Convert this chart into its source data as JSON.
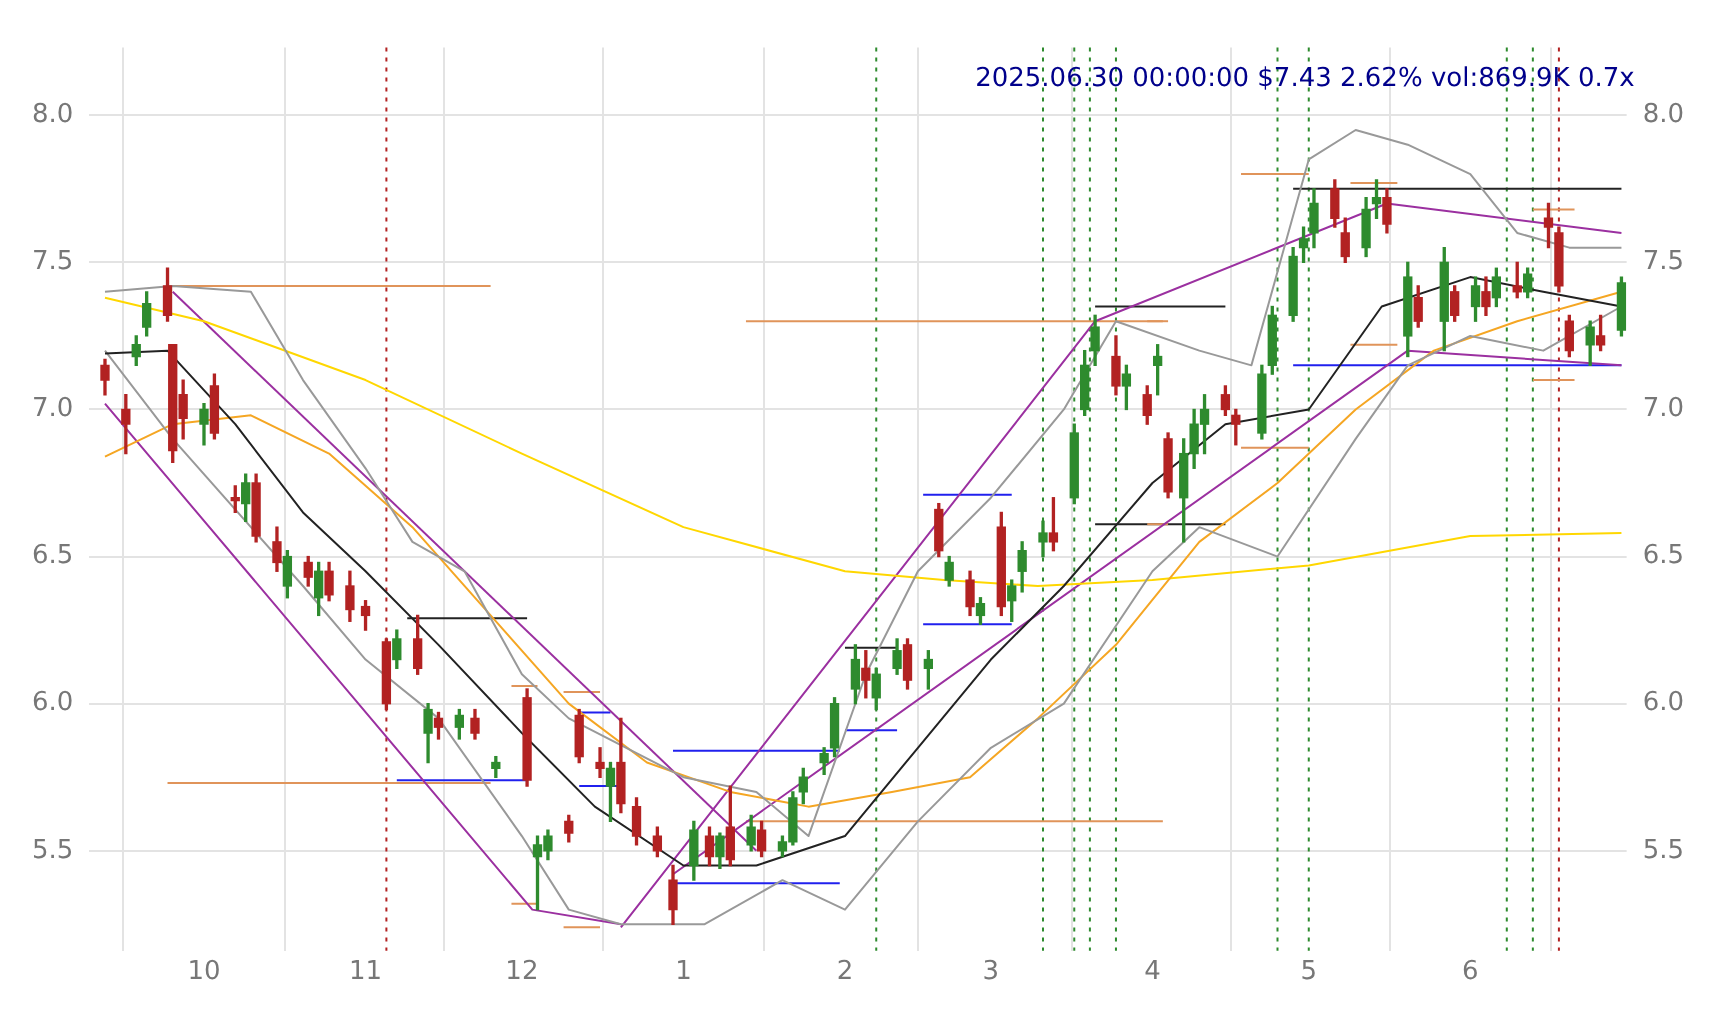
{
  "chart_data": {
    "type": "candlestick",
    "title": "2025.06.30 00:00:00 $7.43 2.62% vol:869.9K 0.7x",
    "xlim": [
      "2024-09-09",
      "2025-07-01"
    ],
    "xticks": [
      {
        "value": "2024-10-01",
        "label": "10"
      },
      {
        "value": "2024-11-01",
        "label": "11"
      },
      {
        "value": "2024-12-01",
        "label": "12"
      },
      {
        "value": "2025-01-01",
        "label": "1"
      },
      {
        "value": "2025-02-01",
        "label": "2"
      },
      {
        "value": "2025-03-01",
        "label": "3"
      },
      {
        "value": "2025-04-01",
        "label": "4"
      },
      {
        "value": "2025-05-01",
        "label": "5"
      },
      {
        "value": "2025-06-01",
        "label": "6"
      }
    ],
    "ylim": [
      5.16,
      8.23
    ],
    "yticks": [
      5.5,
      {
        "value": 6,
        "label": "6.0"
      },
      6.5,
      {
        "value": 7,
        "label": "7.0"
      },
      7.5,
      {
        "value": 8,
        "label": "8.0"
      }
    ],
    "y2lim": [
      5.16,
      8.23
    ],
    "y2ticks": [
      5.5,
      {
        "value": 6,
        "label": "6.0"
      },
      6.5,
      {
        "value": 7,
        "label": "7.0"
      },
      7.5,
      {
        "value": 8,
        "label": "8.0"
      }
    ],
    "grid": true,
    "legend": false,
    "series": [
      {
        "color": "#2e8b2e",
        "x": [
          "2024-09-18",
          "2024-09-20",
          "2024-10-01",
          "2024-10-09",
          "2024-10-17",
          "2024-10-23",
          "2024-11-07",
          "2024-11-13",
          "2024-11-19",
          "2024-11-26",
          "2024-12-04",
          "2024-12-06",
          "2024-12-18",
          "2025-01-03",
          "2025-01-08",
          "2025-01-14",
          "2025-01-20",
          "2025-01-22",
          "2025-01-24",
          "2025-01-28",
          "2025-01-30",
          "2025-02-03",
          "2025-02-07",
          "2025-02-11",
          "2025-02-17",
          "2025-02-21",
          "2025-02-27",
          "2025-03-05",
          "2025-03-07",
          "2025-03-11",
          "2025-03-17",
          "2025-03-19",
          "2025-03-21",
          "2025-03-27",
          "2025-04-02",
          "2025-04-07",
          "2025-04-09",
          "2025-04-11",
          "2025-04-22",
          "2025-04-24",
          "2025-04-28",
          "2025-04-30",
          "2025-05-02",
          "2025-05-12",
          "2025-05-14",
          "2025-05-20",
          "2025-05-27",
          "2025-06-02",
          "2025-06-06",
          "2025-06-12",
          "2025-06-24",
          "2025-06-30"
        ],
        "ohlc": [
          [
            7.18,
            7.25,
            7.15,
            7.22
          ],
          [
            7.28,
            7.4,
            7.25,
            7.36
          ],
          [
            6.95,
            7.02,
            6.88,
            7.0
          ],
          [
            6.68,
            6.78,
            6.62,
            6.75
          ],
          [
            6.4,
            6.52,
            6.36,
            6.5
          ],
          [
            6.36,
            6.48,
            6.3,
            6.45
          ],
          [
            6.15,
            6.25,
            6.12,
            6.22
          ],
          [
            5.9,
            6.0,
            5.8,
            5.98
          ],
          [
            5.92,
            5.98,
            5.88,
            5.96
          ],
          [
            5.78,
            5.82,
            5.75,
            5.8
          ],
          [
            5.48,
            5.55,
            5.3,
            5.52
          ],
          [
            5.5,
            5.57,
            5.47,
            5.55
          ],
          [
            5.72,
            5.8,
            5.6,
            5.78
          ],
          [
            5.45,
            5.6,
            5.4,
            5.57
          ],
          [
            5.48,
            5.56,
            5.44,
            5.55
          ],
          [
            5.52,
            5.62,
            5.5,
            5.58
          ],
          [
            5.5,
            5.55,
            5.48,
            5.53
          ],
          [
            5.53,
            5.7,
            5.52,
            5.68
          ],
          [
            5.7,
            5.78,
            5.66,
            5.75
          ],
          [
            5.8,
            5.85,
            5.76,
            5.83
          ],
          [
            5.85,
            6.02,
            5.82,
            6.0
          ],
          [
            6.05,
            6.2,
            6.0,
            6.15
          ],
          [
            6.02,
            6.12,
            5.98,
            6.1
          ],
          [
            6.12,
            6.22,
            6.1,
            6.18
          ],
          [
            6.12,
            6.18,
            6.05,
            6.15
          ],
          [
            6.42,
            6.5,
            6.4,
            6.48
          ],
          [
            6.3,
            6.36,
            6.27,
            6.34
          ],
          [
            6.35,
            6.42,
            6.28,
            6.4
          ],
          [
            6.45,
            6.55,
            6.38,
            6.52
          ],
          [
            6.55,
            6.62,
            6.5,
            6.58
          ],
          [
            6.7,
            6.95,
            6.68,
            6.92
          ],
          [
            7.0,
            7.2,
            6.98,
            7.15
          ],
          [
            7.2,
            7.32,
            7.15,
            7.28
          ],
          [
            7.08,
            7.15,
            7.0,
            7.12
          ],
          [
            7.15,
            7.22,
            7.05,
            7.18
          ],
          [
            6.7,
            6.9,
            6.55,
            6.85
          ],
          [
            6.85,
            7.0,
            6.8,
            6.95
          ],
          [
            6.95,
            7.05,
            6.85,
            7.0
          ],
          [
            6.92,
            7.15,
            6.9,
            7.12
          ],
          [
            7.15,
            7.35,
            7.12,
            7.32
          ],
          [
            7.32,
            7.55,
            7.3,
            7.52
          ],
          [
            7.55,
            7.62,
            7.5,
            7.58
          ],
          [
            7.6,
            7.75,
            7.55,
            7.7
          ],
          [
            7.55,
            7.72,
            7.52,
            7.68
          ],
          [
            7.7,
            7.78,
            7.65,
            7.72
          ],
          [
            7.25,
            7.5,
            7.18,
            7.45
          ],
          [
            7.3,
            7.55,
            7.2,
            7.5
          ],
          [
            7.35,
            7.45,
            7.3,
            7.42
          ],
          [
            7.38,
            7.48,
            7.35,
            7.45
          ],
          [
            7.4,
            7.48,
            7.38,
            7.46
          ],
          [
            7.22,
            7.3,
            7.15,
            7.28
          ],
          [
            7.27,
            7.45,
            7.25,
            7.43
          ]
        ]
      },
      {
        "color": "#b22222",
        "x": [
          "2024-09-12",
          "2024-09-16",
          "2024-09-24",
          "2024-09-25",
          "2024-09-27",
          "2024-10-03",
          "2024-10-07",
          "2024-10-11",
          "2024-10-15",
          "2024-10-21",
          "2024-10-25",
          "2024-10-29",
          "2024-11-01",
          "2024-11-05",
          "2024-11-11",
          "2024-11-15",
          "2024-11-22",
          "2024-12-02",
          "2024-12-10",
          "2024-12-12",
          "2024-12-16",
          "2024-12-20",
          "2024-12-23",
          "2024-12-27",
          "2024-12-30",
          "2025-01-06",
          "2025-01-10",
          "2025-01-16",
          "2025-02-05",
          "2025-02-13",
          "2025-02-19",
          "2025-02-25",
          "2025-03-03",
          "2025-03-13",
          "2025-03-25",
          "2025-03-31",
          "2025-04-04",
          "2025-04-15",
          "2025-04-17",
          "2025-05-06",
          "2025-05-08",
          "2025-05-16",
          "2025-05-22",
          "2025-05-29",
          "2025-06-04",
          "2025-06-10",
          "2025-06-16",
          "2025-06-18",
          "2025-06-20",
          "2025-06-26"
        ],
        "ohlc": [
          [
            7.15,
            7.17,
            7.05,
            7.1
          ],
          [
            7.0,
            7.05,
            6.85,
            6.95
          ],
          [
            7.42,
            7.48,
            7.3,
            7.32
          ],
          [
            7.22,
            7.22,
            6.82,
            6.86
          ],
          [
            7.05,
            7.1,
            6.9,
            6.97
          ],
          [
            7.08,
            7.12,
            6.9,
            6.92
          ],
          [
            6.7,
            6.74,
            6.65,
            6.69
          ],
          [
            6.75,
            6.78,
            6.55,
            6.57
          ],
          [
            6.55,
            6.6,
            6.45,
            6.48
          ],
          [
            6.48,
            6.5,
            6.4,
            6.43
          ],
          [
            6.45,
            6.48,
            6.35,
            6.37
          ],
          [
            6.4,
            6.45,
            6.28,
            6.32
          ],
          [
            6.33,
            6.35,
            6.25,
            6.3
          ],
          [
            6.21,
            6.22,
            5.98,
            6.0
          ],
          [
            6.22,
            6.3,
            6.1,
            6.12
          ],
          [
            5.95,
            5.97,
            5.88,
            5.92
          ],
          [
            5.95,
            5.98,
            5.88,
            5.9
          ],
          [
            6.02,
            6.05,
            5.72,
            5.74
          ],
          [
            5.6,
            5.62,
            5.53,
            5.56
          ],
          [
            5.96,
            5.98,
            5.8,
            5.82
          ],
          [
            5.8,
            5.85,
            5.75,
            5.78
          ],
          [
            5.8,
            5.95,
            5.63,
            5.66
          ],
          [
            5.65,
            5.68,
            5.52,
            5.55
          ],
          [
            5.55,
            5.58,
            5.48,
            5.5
          ],
          [
            5.4,
            5.45,
            5.25,
            5.3
          ],
          [
            5.55,
            5.58,
            5.45,
            5.48
          ],
          [
            5.58,
            5.72,
            5.45,
            5.47
          ],
          [
            5.57,
            5.6,
            5.48,
            5.5
          ],
          [
            6.12,
            6.18,
            6.02,
            6.08
          ],
          [
            6.2,
            6.22,
            6.05,
            6.08
          ],
          [
            6.66,
            6.68,
            6.5,
            6.52
          ],
          [
            6.42,
            6.45,
            6.3,
            6.33
          ],
          [
            6.6,
            6.65,
            6.3,
            6.33
          ],
          [
            6.58,
            6.7,
            6.52,
            6.55
          ],
          [
            7.18,
            7.25,
            7.05,
            7.08
          ],
          [
            7.05,
            7.08,
            6.95,
            6.98
          ],
          [
            6.9,
            6.92,
            6.7,
            6.72
          ],
          [
            7.05,
            7.08,
            6.98,
            7.0
          ],
          [
            6.98,
            7.0,
            6.88,
            6.95
          ],
          [
            7.75,
            7.78,
            7.62,
            7.65
          ],
          [
            7.6,
            7.65,
            7.5,
            7.52
          ],
          [
            7.72,
            7.75,
            7.6,
            7.63
          ],
          [
            7.38,
            7.42,
            7.28,
            7.3
          ],
          [
            7.4,
            7.42,
            7.3,
            7.32
          ],
          [
            7.4,
            7.45,
            7.32,
            7.35
          ],
          [
            7.42,
            7.5,
            7.38,
            7.4
          ],
          [
            7.65,
            7.7,
            7.55,
            7.62
          ],
          [
            7.6,
            7.62,
            7.4,
            7.42
          ],
          [
            7.3,
            7.32,
            7.18,
            7.2
          ],
          [
            7.25,
            7.32,
            7.2,
            7.22
          ]
        ]
      },
      {
        "type": "line",
        "color": "#222222",
        "x": [
          "2024-09-12",
          "2024-09-24",
          "2024-10-07",
          "2024-10-20",
          "2024-11-01",
          "2024-11-15",
          "2024-12-01",
          "2024-12-15",
          "2025-01-01",
          "2025-01-15",
          "2025-02-01",
          "2025-02-15",
          "2025-03-01",
          "2025-03-15",
          "2025-04-01",
          "2025-04-15",
          "2025-05-01",
          "2025-05-15",
          "2025-06-01",
          "2025-06-15",
          "2025-06-30"
        ],
        "values": [
          7.19,
          7.2,
          6.95,
          6.65,
          6.45,
          6.2,
          5.9,
          5.65,
          5.45,
          5.45,
          5.55,
          5.85,
          6.15,
          6.4,
          6.75,
          6.95,
          7.0,
          7.35,
          7.45,
          7.4,
          7.35
        ]
      },
      {
        "type": "line",
        "color": "#999999",
        "x": [
          "2024-09-12",
          "2024-09-25",
          "2024-10-10",
          "2024-10-20",
          "2024-11-01",
          "2024-11-10",
          "2024-11-20",
          "2024-12-01",
          "2024-12-10",
          "2025-01-01",
          "2025-01-15",
          "2025-01-25",
          "2025-02-05",
          "2025-02-15",
          "2025-03-01",
          "2025-03-15",
          "2025-03-25",
          "2025-04-10",
          "2025-04-20",
          "2025-05-01",
          "2025-05-10",
          "2025-05-20",
          "2025-06-01",
          "2025-06-10",
          "2025-06-20",
          "2025-06-30"
        ],
        "values": [
          7.4,
          7.42,
          7.4,
          7.1,
          6.8,
          6.55,
          6.45,
          6.1,
          5.95,
          5.75,
          5.7,
          5.55,
          6.1,
          6.45,
          6.7,
          7.0,
          7.3,
          7.2,
          7.15,
          7.85,
          7.95,
          7.9,
          7.8,
          7.6,
          7.55,
          7.55
        ]
      },
      {
        "type": "line",
        "color": "#999999",
        "x": [
          "2024-09-12",
          "2024-09-25",
          "2024-10-10",
          "2024-10-20",
          "2024-11-01",
          "2024-11-15",
          "2024-12-01",
          "2024-12-10",
          "2024-12-20",
          "2025-01-05",
          "2025-01-20",
          "2025-02-01",
          "2025-02-15",
          "2025-03-01",
          "2025-03-15",
          "2025-04-01",
          "2025-04-10",
          "2025-04-25",
          "2025-05-10",
          "2025-05-20",
          "2025-06-01",
          "2025-06-15",
          "2025-06-30"
        ],
        "values": [
          7.2,
          6.9,
          6.6,
          6.4,
          6.15,
          5.95,
          5.55,
          5.3,
          5.25,
          5.25,
          5.4,
          5.3,
          5.6,
          5.85,
          6.0,
          6.45,
          6.6,
          6.5,
          6.9,
          7.15,
          7.25,
          7.2,
          7.35
        ]
      },
      {
        "type": "line",
        "color": "#f5a623",
        "x": [
          "2024-09-12",
          "2024-09-25",
          "2024-10-10",
          "2024-10-25",
          "2024-11-10",
          "2024-11-25",
          "2024-12-10",
          "2024-12-25",
          "2025-01-10",
          "2025-01-25",
          "2025-02-10",
          "2025-02-25",
          "2025-03-10",
          "2025-03-25",
          "2025-04-10",
          "2025-04-25",
          "2025-05-10",
          "2025-05-25",
          "2025-06-10",
          "2025-06-30"
        ],
        "values": [
          6.84,
          6.95,
          6.98,
          6.85,
          6.6,
          6.3,
          6.0,
          5.8,
          5.7,
          5.65,
          5.7,
          5.75,
          5.95,
          6.2,
          6.55,
          6.75,
          7.0,
          7.2,
          7.3,
          7.4
        ]
      },
      {
        "type": "line",
        "color": "#ffd700",
        "x": [
          "2024-09-12",
          "2024-10-01",
          "2024-11-01",
          "2024-12-01",
          "2025-01-01",
          "2025-02-01",
          "2025-02-20",
          "2025-03-10",
          "2025-04-01",
          "2025-05-01",
          "2025-06-01",
          "2025-06-30"
        ],
        "values": [
          7.38,
          7.3,
          7.1,
          6.85,
          6.6,
          6.45,
          6.42,
          6.4,
          6.42,
          6.47,
          6.57,
          6.58
        ]
      },
      {
        "type": "line",
        "color": "#9b30a0",
        "x": [
          "2024-09-25",
          "2025-01-15"
        ],
        "values": [
          7.4,
          5.5
        ]
      },
      {
        "type": "line",
        "color": "#9b30a0",
        "x": [
          "2024-09-12",
          "2024-12-03",
          "2024-12-20"
        ],
        "values": [
          7.02,
          5.3,
          5.25
        ]
      },
      {
        "type": "line",
        "color": "#9b30a0",
        "x": [
          "2024-12-20",
          "2025-03-21",
          "2025-05-16",
          "2025-06-30"
        ],
        "values": [
          5.24,
          7.3,
          7.7,
          7.6
        ]
      },
      {
        "type": "line",
        "color": "#9b30a0",
        "x": [
          "2024-12-30",
          "2025-05-20",
          "2025-06-30"
        ],
        "values": [
          5.42,
          7.2,
          7.15
        ]
      },
      {
        "type": "line",
        "color": "#e0945a",
        "x": [
          "2024-09-24",
          "2024-11-25"
        ],
        "values": [
          5.73,
          5.73
        ]
      },
      {
        "type": "line",
        "color": "#e0945a",
        "x": [
          "2024-09-24",
          "2024-11-25"
        ],
        "values": [
          7.42,
          7.42
        ]
      },
      {
        "type": "line",
        "color": "#e0945a",
        "x": [
          "2024-11-29",
          "2024-12-04"
        ],
        "values": [
          5.32,
          5.32
        ]
      },
      {
        "type": "line",
        "color": "#e0945a",
        "x": [
          "2024-11-29",
          "2024-12-04"
        ],
        "values": [
          6.06,
          6.06
        ]
      },
      {
        "type": "line",
        "color": "#e0945a",
        "x": [
          "2024-12-09",
          "2024-12-16"
        ],
        "values": [
          5.24,
          5.24
        ]
      },
      {
        "type": "line",
        "color": "#e0945a",
        "x": [
          "2024-12-09",
          "2024-12-16"
        ],
        "values": [
          6.04,
          6.04
        ]
      },
      {
        "type": "line",
        "color": "#e0945a",
        "x": [
          "2025-01-13",
          "2025-04-03"
        ],
        "values": [
          5.6,
          5.6
        ]
      },
      {
        "type": "line",
        "color": "#e0945a",
        "x": [
          "2025-01-13",
          "2025-04-03"
        ],
        "values": [
          7.3,
          7.3
        ]
      },
      {
        "type": "line",
        "color": "#e0945a",
        "x": [
          "2025-03-31",
          "2025-04-04"
        ],
        "values": [
          6.61,
          6.61
        ]
      },
      {
        "type": "line",
        "color": "#e0945a",
        "x": [
          "2025-03-31",
          "2025-04-04"
        ],
        "values": [
          7.3,
          7.3
        ]
      },
      {
        "type": "line",
        "color": "#e0945a",
        "x": [
          "2025-04-18",
          "2025-05-01"
        ],
        "values": [
          6.87,
          6.87
        ]
      },
      {
        "type": "line",
        "color": "#e0945a",
        "x": [
          "2025-04-18",
          "2025-05-01"
        ],
        "values": [
          7.8,
          7.8
        ]
      },
      {
        "type": "line",
        "color": "#e0945a",
        "x": [
          "2025-05-09",
          "2025-05-18"
        ],
        "values": [
          7.22,
          7.22
        ]
      },
      {
        "type": "line",
        "color": "#e0945a",
        "x": [
          "2025-05-09",
          "2025-05-18"
        ],
        "values": [
          7.77,
          7.77
        ]
      },
      {
        "type": "line",
        "color": "#e0945a",
        "x": [
          "2025-06-13",
          "2025-06-21"
        ],
        "values": [
          7.1,
          7.1
        ]
      },
      {
        "type": "line",
        "color": "#e0945a",
        "x": [
          "2025-06-13",
          "2025-06-21"
        ],
        "values": [
          7.68,
          7.68
        ]
      },
      {
        "type": "line",
        "color": "#222222",
        "x": [
          "2024-11-09",
          "2024-12-02"
        ],
        "values": [
          6.29,
          6.29
        ]
      },
      {
        "type": "line",
        "color": "#2020ee",
        "x": [
          "2024-11-07",
          "2024-12-02"
        ],
        "values": [
          5.74,
          5.74
        ]
      },
      {
        "type": "line",
        "color": "#2020ee",
        "x": [
          "2024-12-12",
          "2024-12-18"
        ],
        "values": [
          5.97,
          5.97
        ]
      },
      {
        "type": "line",
        "color": "#2020ee",
        "x": [
          "2024-12-12",
          "2024-12-20"
        ],
        "values": [
          5.72,
          5.72
        ]
      },
      {
        "type": "line",
        "color": "#2020ee",
        "x": [
          "2024-12-30",
          "2025-01-31"
        ],
        "values": [
          5.84,
          5.84
        ]
      },
      {
        "type": "line",
        "color": "#2020ee",
        "x": [
          "2024-12-30",
          "2025-01-31"
        ],
        "values": [
          5.39,
          5.39
        ]
      },
      {
        "type": "line",
        "color": "#222222",
        "x": [
          "2025-02-01",
          "2025-02-11"
        ],
        "values": [
          6.19,
          6.19
        ]
      },
      {
        "type": "line",
        "color": "#2020ee",
        "x": [
          "2025-02-01",
          "2025-02-11"
        ],
        "values": [
          5.91,
          5.91
        ]
      },
      {
        "type": "line",
        "color": "#2020ee",
        "x": [
          "2025-02-16",
          "2025-03-05"
        ],
        "values": [
          6.71,
          6.71
        ]
      },
      {
        "type": "line",
        "color": "#2020ee",
        "x": [
          "2025-02-16",
          "2025-03-05"
        ],
        "values": [
          6.27,
          6.27
        ]
      },
      {
        "type": "line",
        "color": "#222222",
        "x": [
          "2025-03-21",
          "2025-04-15"
        ],
        "values": [
          7.35,
          7.35
        ]
      },
      {
        "type": "line",
        "color": "#222222",
        "x": [
          "2025-03-21",
          "2025-04-15"
        ],
        "values": [
          6.61,
          6.61
        ]
      },
      {
        "type": "line",
        "color": "#222222",
        "x": [
          "2025-04-28",
          "2025-06-30"
        ],
        "values": [
          7.75,
          7.75
        ]
      },
      {
        "type": "line",
        "color": "#2020ee",
        "x": [
          "2025-04-28",
          "2025-06-30"
        ],
        "values": [
          7.15,
          7.15
        ]
      }
    ],
    "ref_lines": [
      {
        "axis": "x",
        "value": "2024-11-05",
        "color": "#b22222",
        "line_style": "dotted"
      },
      {
        "axis": "x",
        "value": "2025-02-07",
        "color": "#2e8b2e",
        "line_style": "dotted"
      },
      {
        "axis": "x",
        "value": "2025-03-11",
        "color": "#2e8b2e",
        "line_style": "dotted"
      },
      {
        "axis": "x",
        "value": "2025-03-17",
        "color": "#2e8b2e",
        "line_style": "dotted"
      },
      {
        "axis": "x",
        "value": "2025-03-20",
        "color": "#2e8b2e",
        "line_style": "dotted"
      },
      {
        "axis": "x",
        "value": "2025-03-25",
        "color": "#2e8b2e",
        "line_style": "dotted"
      },
      {
        "axis": "x",
        "value": "2025-04-25",
        "color": "#2e8b2e",
        "line_style": "dotted"
      },
      {
        "axis": "x",
        "value": "2025-05-01",
        "color": "#2e8b2e",
        "line_style": "dotted"
      },
      {
        "axis": "x",
        "value": "2025-06-08",
        "color": "#2e8b2e",
        "line_style": "dotted"
      },
      {
        "axis": "x",
        "value": "2025-06-13",
        "color": "#2e8b2e",
        "line_style": "dotted"
      },
      {
        "axis": "x",
        "value": "2025-06-18",
        "color": "#b22222",
        "line_style": "dotted"
      }
    ]
  }
}
